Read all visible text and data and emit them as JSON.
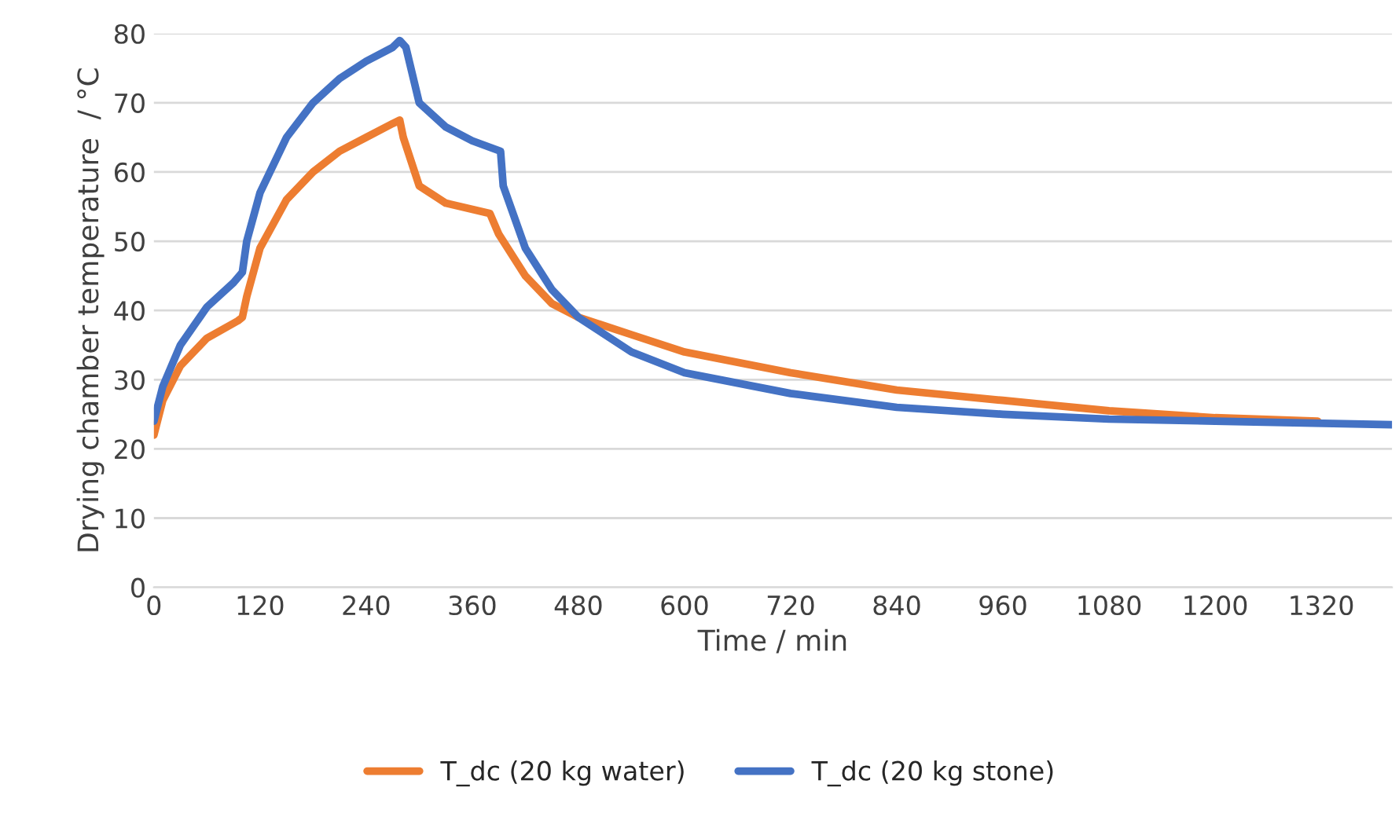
{
  "chart_data": {
    "type": "line",
    "xlabel": "Time / min",
    "ylabel": "Drying chamber temperature  / °C",
    "xlim": [
      0,
      1400
    ],
    "xticks": [
      0,
      120,
      240,
      360,
      480,
      600,
      720,
      840,
      960,
      1080,
      1200,
      1320
    ],
    "ylim": [
      0,
      80
    ],
    "yticks": [
      0,
      10,
      20,
      30,
      40,
      50,
      60,
      70,
      80
    ],
    "grid": "y",
    "legend": "bottom",
    "marker": "none",
    "line_style": "solid",
    "series": [
      {
        "name": "T_dc (20 kg water)",
        "color": "#ed7d31",
        "x": [
          0,
          10,
          30,
          60,
          95,
          100,
          105,
          120,
          150,
          180,
          210,
          240,
          270,
          278,
          282,
          300,
          330,
          380,
          390,
          420,
          450,
          480,
          540,
          600,
          720,
          840,
          960,
          1080,
          1200,
          1316
        ],
        "values": [
          22,
          27,
          32,
          36,
          38.5,
          39,
          42,
          49,
          56,
          60,
          63,
          65,
          67,
          67.5,
          65,
          58,
          55.5,
          54,
          51,
          45,
          41,
          39,
          36.5,
          34,
          31,
          28.5,
          27,
          25.5,
          24.5,
          24
        ]
      },
      {
        "name": "T_dc (20 kg stone)",
        "color": "#4472c4",
        "x": [
          0,
          10,
          30,
          60,
          90,
          100,
          105,
          120,
          150,
          180,
          210,
          240,
          270,
          278,
          285,
          300,
          330,
          360,
          392,
          395,
          420,
          450,
          480,
          540,
          600,
          720,
          840,
          960,
          1080,
          1200,
          1400
        ],
        "values": [
          24,
          29,
          35,
          40.5,
          44,
          45.5,
          50,
          57,
          65,
          70,
          73.5,
          76,
          78,
          79,
          78,
          70,
          66.5,
          64.5,
          63,
          58,
          49,
          43,
          39,
          34,
          31,
          28,
          26,
          25,
          24.3,
          24,
          23.5
        ]
      }
    ]
  }
}
